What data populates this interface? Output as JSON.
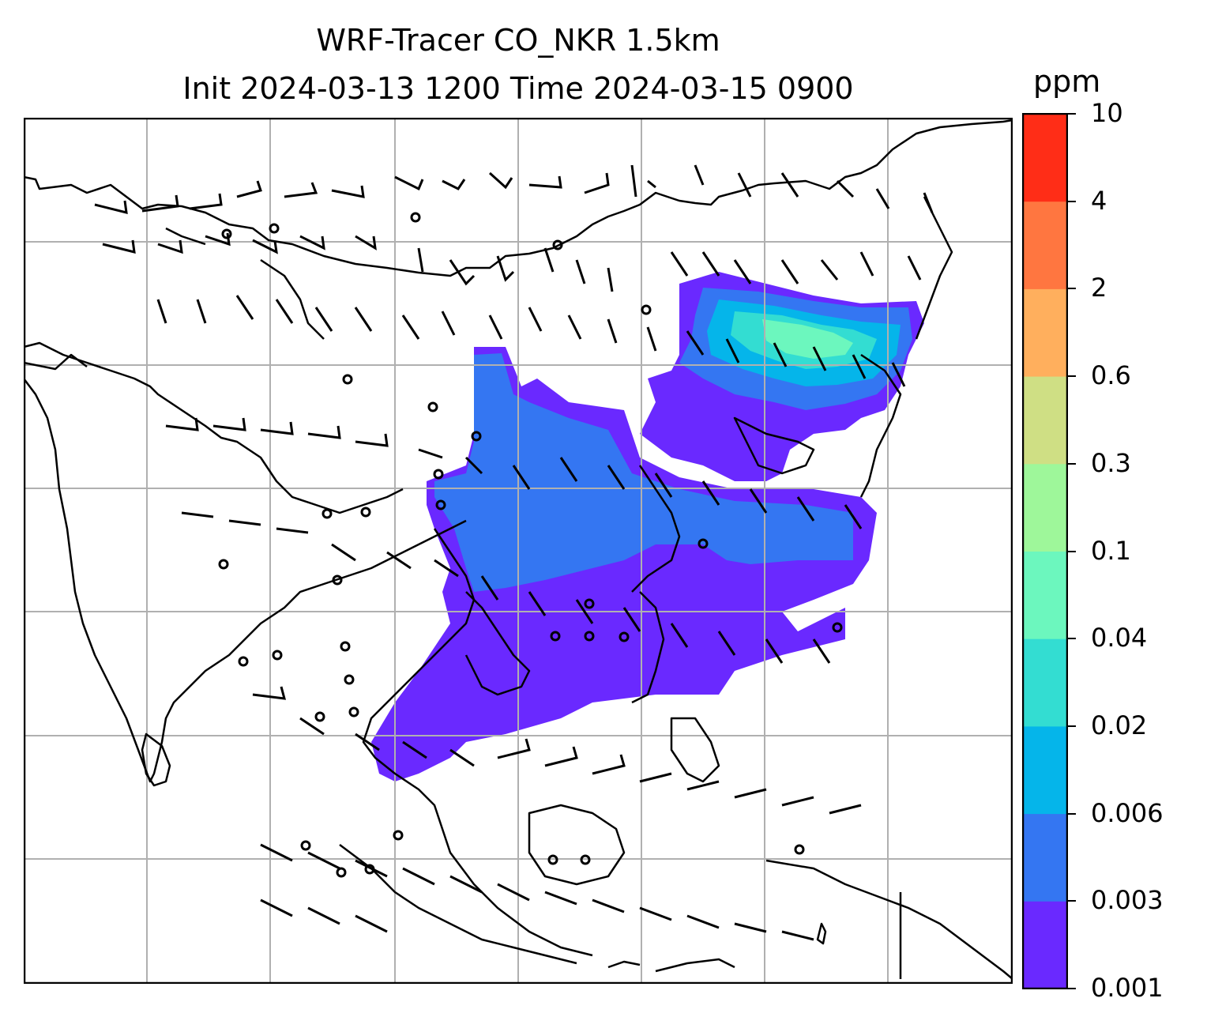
{
  "title": {
    "line1": "WRF-Tracer CO_NKR 1.5km",
    "line2": "Init 2024-03-13 1200 Time 2024-03-15 0900"
  },
  "colorbar": {
    "unit": "ppm",
    "levels": [
      "0.001",
      "0.003",
      "0.006",
      "0.02",
      "0.04",
      "0.1",
      "0.3",
      "0.6",
      "2",
      "4",
      "10"
    ],
    "colors": [
      "#6a29ff",
      "#3476f2",
      "#05b5ea",
      "#33ddd2",
      "#6cf7be",
      "#9ef79a",
      "#cfdf84",
      "#ffaf5d",
      "#ff7640",
      "#ff2d17"
    ]
  },
  "map": {
    "gridlines": true,
    "gridline_color": "#b0b0b0",
    "coastline_color": "#000000",
    "layers": [
      "tracer-concentration-fill",
      "coastlines",
      "wind-barbs"
    ]
  }
}
